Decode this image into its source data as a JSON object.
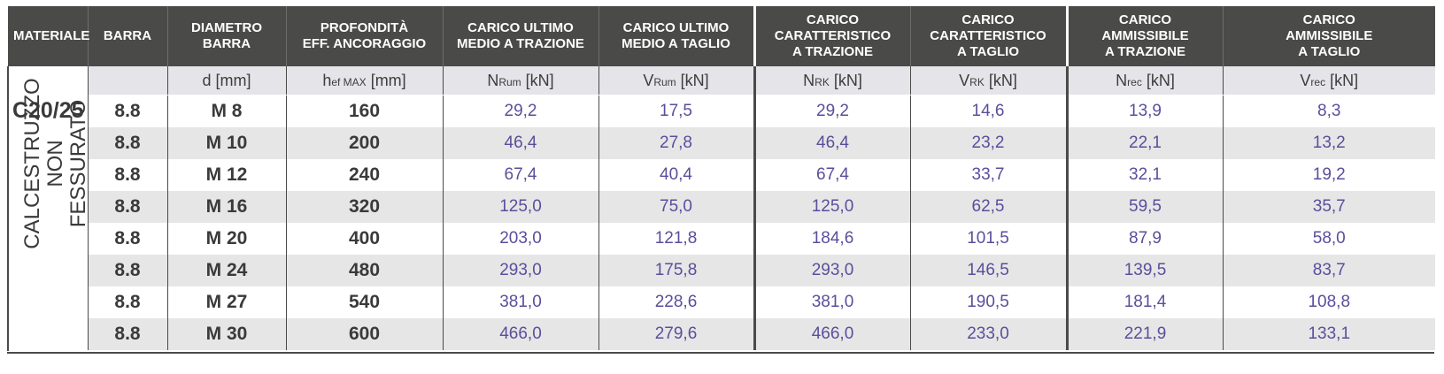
{
  "headers": [
    {
      "line1": "MATERIALE",
      "line2": "",
      "line3": ""
    },
    {
      "line1": "BARRA",
      "line2": "",
      "line3": ""
    },
    {
      "line1": "DIAMETRO",
      "line2": "BARRA",
      "line3": ""
    },
    {
      "line1": "PROFONDITÀ",
      "line2": "EFF. ANCORAGGIO",
      "line3": ""
    },
    {
      "line1": "CARICO ULTIMO",
      "line2": "MEDIO A TRAZIONE",
      "line3": ""
    },
    {
      "line1": "CARICO ULTIMO",
      "line2": "MEDIO A TAGLIO",
      "line3": ""
    },
    {
      "line1": "CARICO",
      "line2": "CARATTERISTICO",
      "line3": "A TRAZIONE"
    },
    {
      "line1": "CARICO",
      "line2": "CARATTERISTICO",
      "line3": "A TAGLIO"
    },
    {
      "line1": "CARICO",
      "line2": "AMMISSIBILE",
      "line3": "A TRAZIONE"
    },
    {
      "line1": "CARICO",
      "line2": "AMMISSIBILE",
      "line3": "A TAGLIO"
    }
  ],
  "units": [
    {
      "sym": "d",
      "sub": "",
      "unit": " [mm]"
    },
    {
      "sym": "h",
      "sub": "ef MAX",
      "unit": " [mm]"
    },
    {
      "sym": "N",
      "sub": "Rum",
      "unit": " [kN]"
    },
    {
      "sym": "V",
      "sub": "Rum",
      "unit": " [kN]"
    },
    {
      "sym": "N",
      "sub": "RK",
      "unit": " [kN]"
    },
    {
      "sym": "V",
      "sub": "RK",
      "unit": " [kN]"
    },
    {
      "sym": "N",
      "sub": "rec",
      "unit": " [kN]"
    },
    {
      "sym": "V",
      "sub": "rec",
      "unit": " [kN]"
    }
  ],
  "material": {
    "grade": "C20/25",
    "line1": "CALCESTRUZZO",
    "line2": "NON FESSURATO"
  },
  "rows": [
    {
      "barra": "8.8",
      "diametro": "M 8",
      "profondita": "160",
      "n_rum": "29,2",
      "v_rum": "17,5",
      "n_rk": "29,2",
      "v_rk": "14,6",
      "n_rec": "13,9",
      "v_rec": "8,3"
    },
    {
      "barra": "8.8",
      "diametro": "M 10",
      "profondita": "200",
      "n_rum": "46,4",
      "v_rum": "27,8",
      "n_rk": "46,4",
      "v_rk": "23,2",
      "n_rec": "22,1",
      "v_rec": "13,2"
    },
    {
      "barra": "8.8",
      "diametro": "M 12",
      "profondita": "240",
      "n_rum": "67,4",
      "v_rum": "40,4",
      "n_rk": "67,4",
      "v_rk": "33,7",
      "n_rec": "32,1",
      "v_rec": "19,2"
    },
    {
      "barra": "8.8",
      "diametro": "M 16",
      "profondita": "320",
      "n_rum": "125,0",
      "v_rum": "75,0",
      "n_rk": "125,0",
      "v_rk": "62,5",
      "n_rec": "59,5",
      "v_rec": "35,7"
    },
    {
      "barra": "8.8",
      "diametro": "M 20",
      "profondita": "400",
      "n_rum": "203,0",
      "v_rum": "121,8",
      "n_rk": "184,6",
      "v_rk": "101,5",
      "n_rec": "87,9",
      "v_rec": "58,0"
    },
    {
      "barra": "8.8",
      "diametro": "M 24",
      "profondita": "480",
      "n_rum": "293,0",
      "v_rum": "175,8",
      "n_rk": "293,0",
      "v_rk": "146,5",
      "n_rec": "139,5",
      "v_rec": "83,7"
    },
    {
      "barra": "8.8",
      "diametro": "M 27",
      "profondita": "540",
      "n_rum": "381,0",
      "v_rum": "228,6",
      "n_rk": "381,0",
      "v_rk": "190,5",
      "n_rec": "181,4",
      "v_rec": "108,8"
    },
    {
      "barra": "8.8",
      "diametro": "M 30",
      "profondita": "600",
      "n_rum": "466,0",
      "v_rum": "279,6",
      "n_rk": "466,0",
      "v_rk": "233,0",
      "n_rec": "221,9",
      "v_rec": "133,1"
    }
  ]
}
